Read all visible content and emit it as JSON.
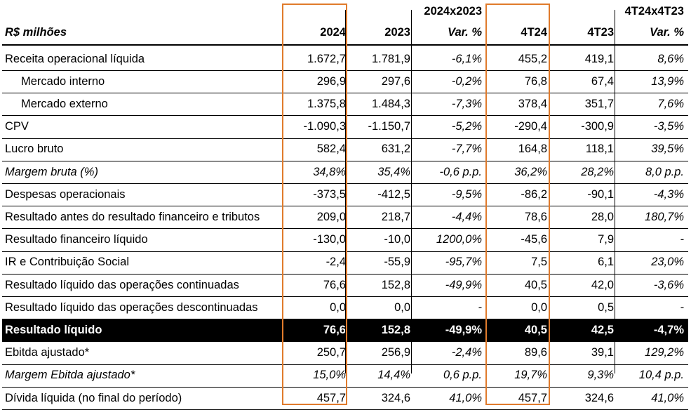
{
  "colors": {
    "highlight_border": "#e07b2c",
    "total_row_bg": "#000000",
    "total_row_text": "#ffffff"
  },
  "header": {
    "unit_label": "R$ milhões",
    "group_year": "2024x2023",
    "group_quarter": "4T24x4T23",
    "cols": [
      "2024",
      "2023",
      "Var. %",
      "4T24",
      "4T23",
      "Var. %"
    ]
  },
  "rows": [
    {
      "label": "Receita operacional líquida",
      "values": [
        "1.672,7",
        "1.781,9",
        "-6,1%",
        "455,2",
        "419,1",
        "8,6%"
      ]
    },
    {
      "label": "Mercado interno",
      "values": [
        "296,9",
        "297,6",
        "-0,2%",
        "76,8",
        "67,4",
        "13,9%"
      ]
    },
    {
      "label": "Mercado externo",
      "values": [
        "1.375,8",
        "1.484,3",
        "-7,3%",
        "378,4",
        "351,7",
        "7,6%"
      ]
    },
    {
      "label": "CPV",
      "values": [
        "-1.090,3",
        "-1.150,7",
        "-5,2%",
        "-290,4",
        "-300,9",
        "-3,5%"
      ]
    },
    {
      "label": "Lucro bruto",
      "values": [
        "582,4",
        "631,2",
        "-7,7%",
        "164,8",
        "118,1",
        "39,5%"
      ]
    },
    {
      "label": "Margem bruta (%)",
      "values": [
        "34,8%",
        "35,4%",
        "-0,6 p.p.",
        "36,2%",
        "28,2%",
        "8,0 p.p."
      ]
    },
    {
      "label": "Despesas operacionais",
      "values": [
        "-373,5",
        "-412,5",
        "-9,5%",
        "-86,2",
        "-90,1",
        "-4,3%"
      ]
    },
    {
      "label": "Resultado antes do resultado financeiro e tributos",
      "values": [
        "209,0",
        "218,7",
        "-4,4%",
        "78,6",
        "28,0",
        "180,7%"
      ]
    },
    {
      "label": "Resultado financeiro líquido",
      "values": [
        "-130,0",
        "-10,0",
        "1200,0%",
        "-45,6",
        "7,9",
        "-"
      ]
    },
    {
      "label": "IR e Contribuição Social",
      "values": [
        "-2,4",
        "-55,9",
        "-95,7%",
        "7,5",
        "6,1",
        "23,0%"
      ]
    },
    {
      "label": "Resultado líquido das operações continuadas",
      "values": [
        "76,6",
        "152,8",
        "-49,9%",
        "40,5",
        "42,0",
        "-3,6%"
      ]
    },
    {
      "label": "Resultado líquido das operações descontinuadas",
      "values": [
        "0,0",
        "0,0",
        "-",
        "0,0",
        "0,5",
        "-"
      ]
    },
    {
      "label": "Resultado líquido",
      "values": [
        "76,6",
        "152,8",
        "-49,9%",
        "40,5",
        "42,5",
        "-4,7%"
      ]
    },
    {
      "label": "Ebitda ajustado*",
      "values": [
        "250,7",
        "256,9",
        "-2,4%",
        "89,6",
        "39,1",
        "129,2%"
      ]
    },
    {
      "label": "Margem Ebitda ajustado*",
      "values": [
        "15,0%",
        "14,4%",
        "0,6 p.p.",
        "19,7%",
        "9,3%",
        "10,4 p.p."
      ]
    },
    {
      "label": "Dívida líquida (no final do período)",
      "values": [
        "457,7",
        "324,6",
        "41,0%",
        "457,7",
        "324,6",
        "41,0%"
      ]
    }
  ]
}
